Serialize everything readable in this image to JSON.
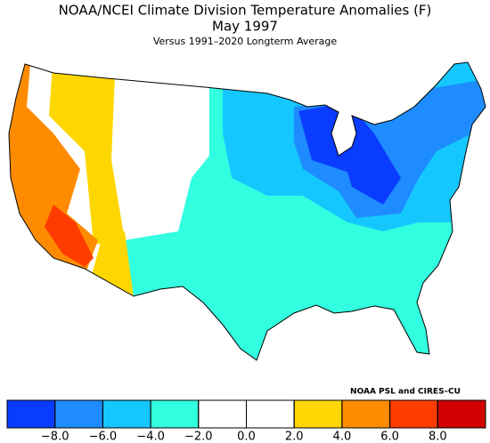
{
  "header": {
    "title": "NOAA/NCEI Climate Division Temperature Anomalies (F)",
    "date": "May 1997",
    "subtitle": "Versus 1991–2020 Longterm Average",
    "credit": "NOAA PSL and CIRES–CU"
  },
  "colorbar": {
    "xlim": [
      -10,
      10
    ],
    "ticks": [
      {
        "value": -8,
        "label": "−8.0"
      },
      {
        "value": -6,
        "label": "−6.0"
      },
      {
        "value": -4,
        "label": "−4.0"
      },
      {
        "value": -2,
        "label": "−2.0"
      },
      {
        "value": 0,
        "label": "0.0"
      },
      {
        "value": 2,
        "label": "2.0"
      },
      {
        "value": 4,
        "label": "4.0"
      },
      {
        "value": 6,
        "label": "6.0"
      },
      {
        "value": 8,
        "label": "8.0"
      }
    ],
    "colors": [
      "#0a3cff",
      "#1e8cff",
      "#14c8ff",
      "#32ffe0",
      "#ffffff",
      "#ffffff",
      "#ffd700",
      "#ff8c00",
      "#ff3c00",
      "#d20000"
    ]
  }
}
